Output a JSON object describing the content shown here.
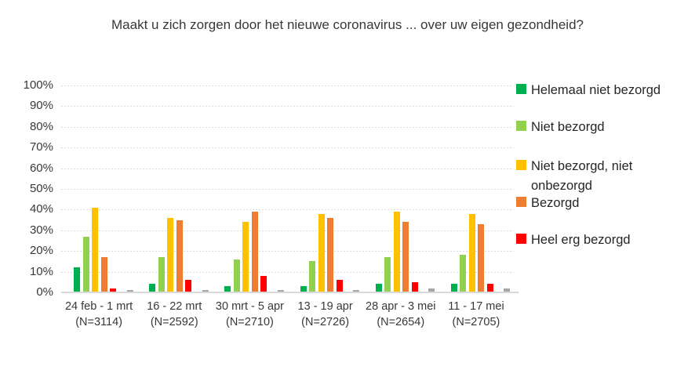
{
  "chart_data": {
    "type": "bar",
    "title": "Maakt u zich zorgen door het nieuwe coronavirus ... over uw eigen gezondheid?",
    "categories": [
      {
        "period": "24 feb - 1 mrt",
        "n": "(N=3114)"
      },
      {
        "period": "16 - 22 mrt",
        "n": "(N=2592)"
      },
      {
        "period": "30 mrt - 5 apr",
        "n": "(N=2710)"
      },
      {
        "period": "13 - 19 apr",
        "n": "(N=2726)"
      },
      {
        "period": "28 apr - 3 mei",
        "n": "(N=2654)"
      },
      {
        "period": "11 - 17 mei",
        "n": "(N=2705)"
      }
    ],
    "series": [
      {
        "name": "Helemaal niet bezorgd",
        "color": "#00B050",
        "values": [
          12,
          4,
          3,
          3,
          4,
          4
        ],
        "in_legend": true
      },
      {
        "name": "Niet bezorgd",
        "color": "#92D050",
        "values": [
          27,
          17,
          16,
          15,
          17,
          18
        ],
        "in_legend": true
      },
      {
        "name": "Niet bezorgd, niet onbezorgd",
        "color": "#FFC000",
        "values": [
          41,
          36,
          34,
          38,
          39,
          38
        ],
        "in_legend": true
      },
      {
        "name": "Bezorgd",
        "color": "#ED7D31",
        "values": [
          17,
          35,
          39,
          36,
          34,
          33
        ],
        "in_legend": true
      },
      {
        "name": "Heel erg bezorgd",
        "color": "#FF0000",
        "values": [
          2,
          6,
          8,
          6,
          5,
          4
        ],
        "in_legend": true
      },
      {
        "name": "",
        "color": "#A6A6A6",
        "values": [
          1,
          1,
          1,
          1,
          2,
          2
        ],
        "in_legend": false,
        "gap_before": true
      }
    ],
    "ylim": [
      0,
      100
    ],
    "ytick_labels": [
      "0%",
      "10%",
      "20%",
      "30%",
      "40%",
      "50%",
      "60%",
      "70%",
      "80%",
      "90%",
      "100%"
    ],
    "legend_position": "right",
    "grid": "horizontal-dashed",
    "axis_color": "#d9d9d9"
  }
}
